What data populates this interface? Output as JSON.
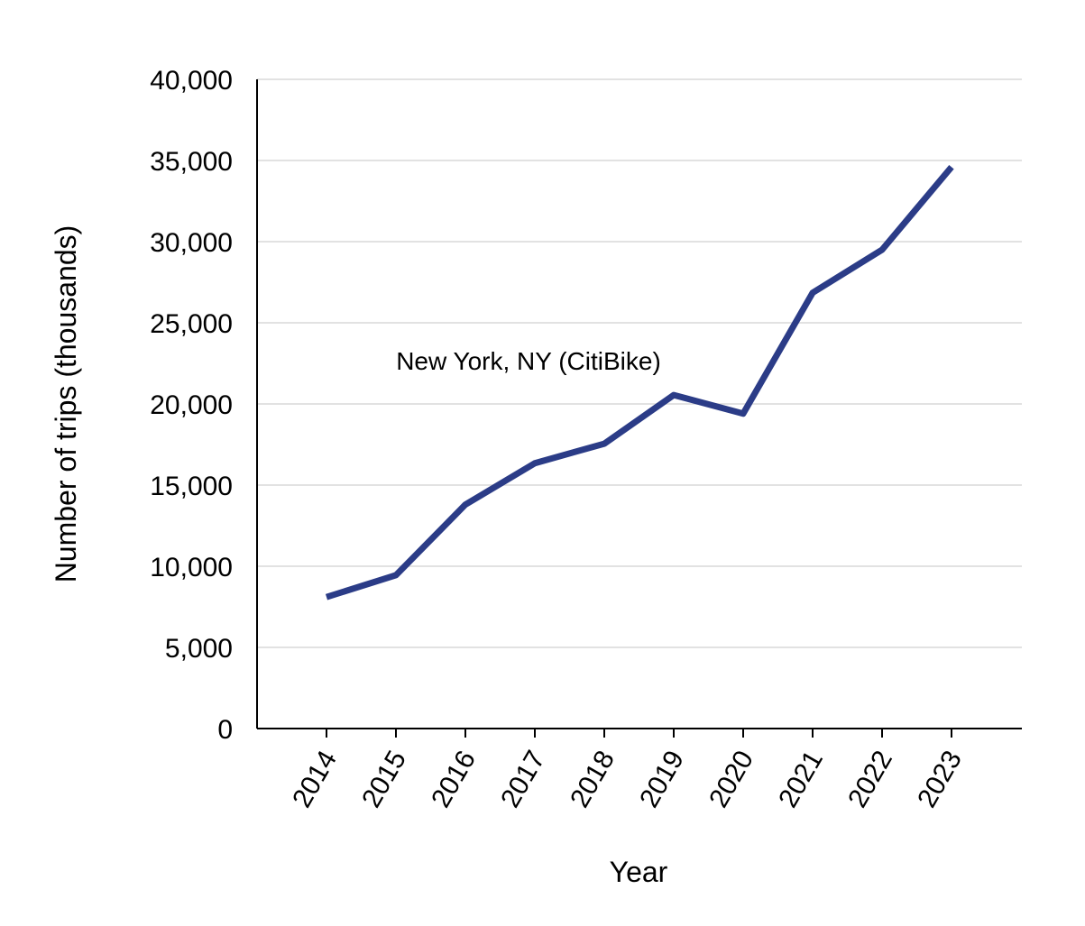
{
  "chart_data": {
    "type": "line",
    "title": "",
    "xlabel": "Year",
    "ylabel": "Number of trips (thousands)",
    "categories": [
      "2014",
      "2015",
      "2016",
      "2017",
      "2018",
      "2019",
      "2020",
      "2021",
      "2022",
      "2023"
    ],
    "series": [
      {
        "name": "New York, NY (CitiBike)",
        "color": "#2b3c87",
        "values": [
          8100,
          9450,
          13800,
          16350,
          17550,
          20550,
          19400,
          26850,
          29500,
          34600
        ]
      }
    ],
    "ylim": [
      0,
      40000
    ],
    "yticks": [
      0,
      5000,
      10000,
      15000,
      20000,
      25000,
      30000,
      35000,
      40000
    ],
    "ytick_labels": [
      "0",
      "5,000",
      "10,000",
      "15,000",
      "20,000",
      "25,000",
      "30,000",
      "35,000",
      "40,000"
    ],
    "grid": "horizontal",
    "legend": "none",
    "annotations": [
      {
        "text": "New York, NY (CitiBike)"
      }
    ]
  }
}
